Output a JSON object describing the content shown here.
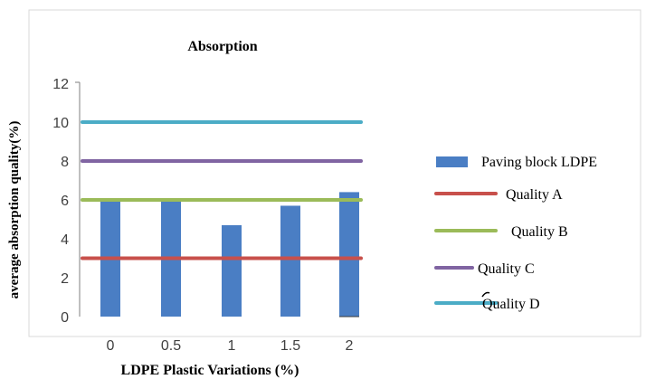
{
  "chart_data": {
    "type": "bar",
    "title": "Absorption",
    "xlabel": "LDPE Plastic Variations (%)",
    "ylabel": "average absorption quality(%)",
    "categories": [
      "0",
      "0.5",
      "1",
      "1.5",
      "2"
    ],
    "yticks": [
      "0",
      "2",
      "4",
      "6",
      "8",
      "10",
      "12"
    ],
    "ylim": [
      0,
      12
    ],
    "grid": false,
    "legend_position": "right",
    "series": [
      {
        "name": "Paving block LDPE",
        "kind": "bar",
        "values": [
          6.0,
          6.0,
          4.7,
          5.7,
          6.4
        ],
        "color": "#4a7ec4"
      }
    ],
    "reference_lines": [
      {
        "name": "Quality A",
        "value": 3,
        "color": "#c8504b"
      },
      {
        "name": "Quality B",
        "value": 6,
        "color": "#9bbb59"
      },
      {
        "name": "Quality C",
        "value": 8,
        "color": "#8064a2"
      },
      {
        "name": "Quality D",
        "value": 10,
        "color": "#4bacc6"
      }
    ]
  }
}
